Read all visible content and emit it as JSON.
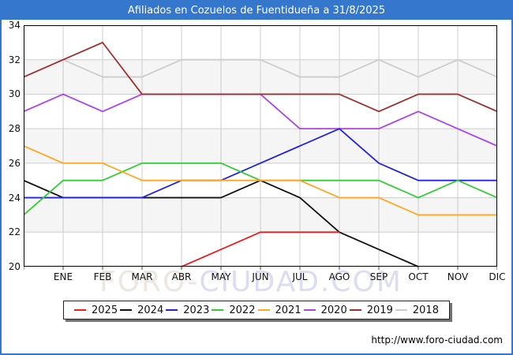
{
  "header": {
    "title": "Afiliados en Cozuelos de Fuentidueña a 31/8/2025"
  },
  "footer": {
    "url": "http://www.foro-ciudad.com"
  },
  "watermark": {
    "part1": "FORO-",
    "part2": "CIUDAD.COM"
  },
  "colors": {
    "header_bg": "#3577cd",
    "frame_border": "#3577cd",
    "grid": "#cccccc",
    "band_alt": "#f5f5f5",
    "plot_border": "#000000",
    "tick": "#444444"
  },
  "chart_data": {
    "type": "line",
    "title": "Afiliados en Cozuelos de Fuentidueña a 31/8/2025",
    "xlabel": "",
    "ylabel": "",
    "ylim": [
      20,
      34
    ],
    "y_ticks": [
      20,
      22,
      24,
      26,
      28,
      30,
      32,
      34
    ],
    "grid": true,
    "legend_position": "bottom",
    "categories": [
      "",
      "ENE",
      "FEB",
      "MAR",
      "ABR",
      "MAY",
      "JUN",
      "JUL",
      "AGO",
      "SEP",
      "OCT",
      "NOV",
      "DIC"
    ],
    "month_labels": [
      "ENE",
      "FEB",
      "MAR",
      "ABR",
      "MAY",
      "JUN",
      "JUL",
      "AGO",
      "SEP",
      "OCT",
      "NOV",
      "DIC"
    ],
    "note": "first value of each series is plotted at the left plot edge before ENE",
    "series": [
      {
        "name": "2018",
        "color": "#cccccc",
        "values": [
          31,
          32,
          31,
          31,
          32,
          32,
          32,
          31,
          31,
          32,
          31,
          32,
          31
        ]
      },
      {
        "name": "2020",
        "color": "#ad42f0",
        "values": [
          29,
          30,
          29,
          30,
          30,
          30,
          30,
          28,
          28,
          28,
          29,
          28,
          27
        ]
      },
      {
        "name": "2024",
        "color": "#111111",
        "values": [
          25,
          24,
          24,
          24,
          24,
          24,
          25,
          24,
          22,
          21,
          20,
          null,
          null
        ]
      },
      {
        "name": "2023",
        "color": "#2222dd",
        "values": [
          24,
          24,
          24,
          24,
          25,
          25,
          26,
          27,
          28,
          26,
          25,
          25,
          25
        ]
      },
      {
        "name": "2022",
        "color": "#33cc33",
        "values": [
          23,
          25,
          25,
          26,
          26,
          26,
          25,
          25,
          25,
          25,
          24,
          25,
          24
        ]
      },
      {
        "name": "2021",
        "color": "#ffa722",
        "values": [
          27,
          26,
          26,
          25,
          25,
          25,
          25,
          25,
          24,
          24,
          23,
          23,
          23
        ]
      },
      {
        "name": "2019",
        "color": "#a02f2f",
        "values": [
          31,
          32,
          33,
          30,
          30,
          30,
          30,
          30,
          30,
          29,
          30,
          30,
          29
        ]
      },
      {
        "name": "2025",
        "color": "#ee1c1c",
        "values": [
          null,
          null,
          null,
          null,
          20,
          21,
          22,
          22,
          22,
          null,
          null,
          null,
          null
        ]
      }
    ]
  },
  "legend": {
    "items": [
      {
        "label": "2025",
        "color": "#ee1c1c"
      },
      {
        "label": "2024",
        "color": "#111111"
      },
      {
        "label": "2023",
        "color": "#2222dd"
      },
      {
        "label": "2022",
        "color": "#33cc33"
      },
      {
        "label": "2021",
        "color": "#ffa722"
      },
      {
        "label": "2020",
        "color": "#ad42f0"
      },
      {
        "label": "2019",
        "color": "#a02f2f"
      },
      {
        "label": "2018",
        "color": "#cccccc"
      }
    ]
  }
}
